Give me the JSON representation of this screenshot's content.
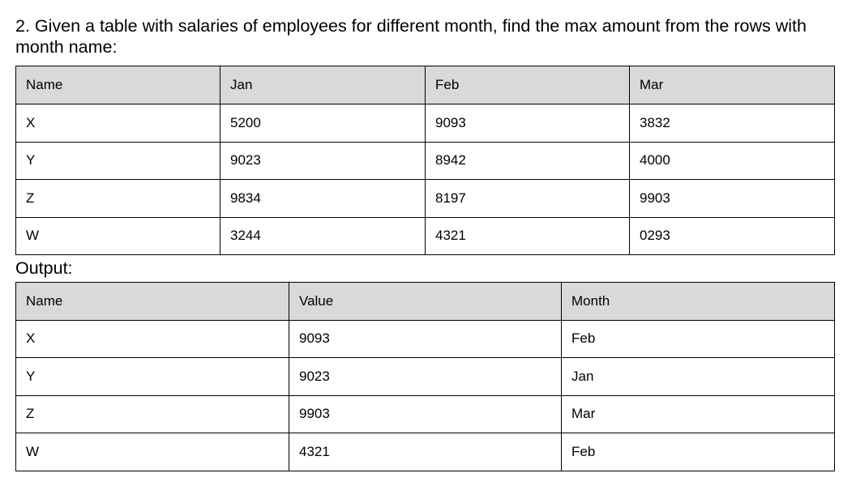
{
  "question": "2. Given a table with salaries of employees for different month, find the max amount from the rows with month name:",
  "input_table": {
    "headers": [
      "Name",
      "Jan",
      "Feb",
      "Mar"
    ],
    "rows": [
      [
        "X",
        "5200",
        "9093",
        "3832"
      ],
      [
        "Y",
        "9023",
        "8942",
        "4000"
      ],
      [
        "Z",
        "9834",
        "8197",
        "9903"
      ],
      [
        "W",
        "3244",
        "4321",
        "0293"
      ]
    ]
  },
  "output_label": "Output:",
  "output_table": {
    "headers": [
      "Name",
      "Value",
      "Month"
    ],
    "rows": [
      [
        "X",
        "9093",
        "Feb"
      ],
      [
        "Y",
        "9023",
        "Jan"
      ],
      [
        "Z",
        "9903",
        "Mar"
      ],
      [
        "W",
        "4321",
        "Feb"
      ]
    ]
  }
}
